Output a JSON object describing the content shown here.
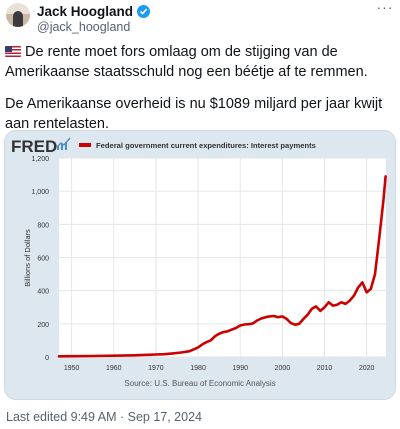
{
  "header": {
    "display_name": "Jack Hoogland",
    "handle": "@jack_hoogland",
    "more_label": "···"
  },
  "tweet": {
    "paragraph_1": "De rente moet fors omlaag om de stijging van de Amerikaanse staatsschuld nog een béétje af te remmen.",
    "paragraph_2": "De Amerikaanse overheid is nu $1089 miljard per jaar kwijt aan rentelasten."
  },
  "footer": {
    "edited_label": "Last edited 9:49 AM · Sep 17, 2024"
  },
  "colors": {
    "series": "#cc0000",
    "accent": "#1d9bf0",
    "card_background": "#dde7f0"
  },
  "chart_data": {
    "type": "line",
    "brand": "FRED",
    "legend": "Federal government current expenditures: Interest payments",
    "ylabel": "Billions of Dollars",
    "source": "Source: U.S. Bureau of Economic Analysis",
    "xlim": [
      1947,
      2024.6
    ],
    "ylim": [
      0,
      1200
    ],
    "x_ticks": [
      1950,
      1960,
      1970,
      1980,
      1990,
      2000,
      2010,
      2020
    ],
    "y_ticks": [
      0,
      200,
      400,
      600,
      800,
      1000,
      1200
    ],
    "y_tick_labels": [
      "0",
      "200",
      "400",
      "600",
      "800",
      "1,000",
      "1,200"
    ],
    "series": [
      {
        "values": [
          [
            1947,
            4
          ],
          [
            1950,
            5
          ],
          [
            1955,
            6
          ],
          [
            1960,
            8
          ],
          [
            1965,
            10
          ],
          [
            1968,
            13
          ],
          [
            1970,
            15
          ],
          [
            1972,
            17
          ],
          [
            1974,
            22
          ],
          [
            1976,
            27
          ],
          [
            1978,
            35
          ],
          [
            1980,
            58
          ],
          [
            1981,
            76
          ],
          [
            1982,
            90
          ],
          [
            1983,
            100
          ],
          [
            1984,
            125
          ],
          [
            1985,
            140
          ],
          [
            1986,
            150
          ],
          [
            1987,
            155
          ],
          [
            1988,
            165
          ],
          [
            1989,
            175
          ],
          [
            1990,
            190
          ],
          [
            1991,
            196
          ],
          [
            1992,
            198
          ],
          [
            1993,
            202
          ],
          [
            1994,
            220
          ],
          [
            1995,
            232
          ],
          [
            1996,
            240
          ],
          [
            1997,
            245
          ],
          [
            1998,
            247
          ],
          [
            1999,
            240
          ],
          [
            2000,
            245
          ],
          [
            2001,
            230
          ],
          [
            2002,
            205
          ],
          [
            2003,
            195
          ],
          [
            2004,
            200
          ],
          [
            2005,
            230
          ],
          [
            2006,
            255
          ],
          [
            2007,
            290
          ],
          [
            2008,
            305
          ],
          [
            2009,
            278
          ],
          [
            2010,
            300
          ],
          [
            2011,
            330
          ],
          [
            2012,
            310
          ],
          [
            2013,
            315
          ],
          [
            2014,
            330
          ],
          [
            2015,
            320
          ],
          [
            2016,
            340
          ],
          [
            2017,
            370
          ],
          [
            2018,
            420
          ],
          [
            2019,
            450
          ],
          [
            2020,
            390
          ],
          [
            2021,
            410
          ],
          [
            2022,
            500
          ],
          [
            2023,
            720
          ],
          [
            2024,
            950
          ],
          [
            2024.5,
            1089
          ]
        ]
      }
    ]
  }
}
